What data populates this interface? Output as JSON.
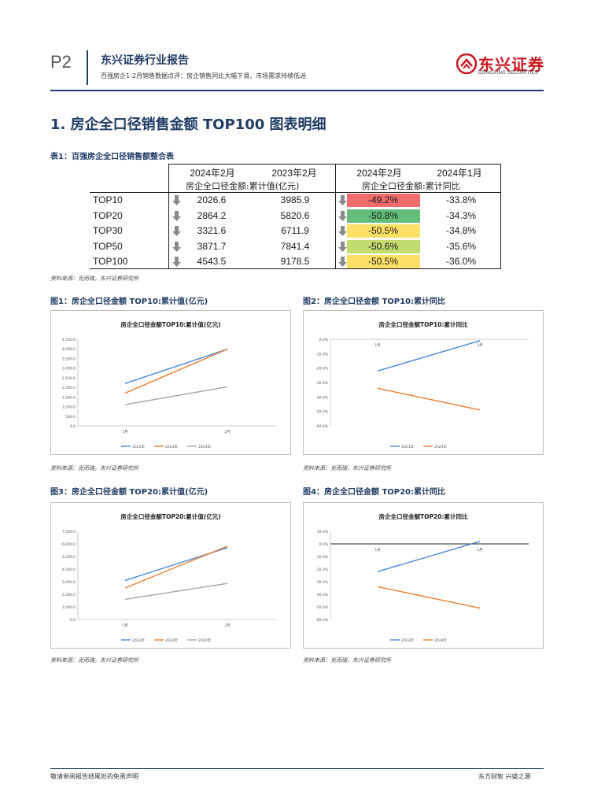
{
  "header": {
    "page_number": "P2",
    "report_type": "东兴证券行业报告",
    "subtitle": "百强房企1-2月销售数据点评：房企销售同比大幅下滑，市场需求持续低迷",
    "logo_cn": "东兴证券",
    "logo_en": "DONGXING SECURITIES"
  },
  "section_title": "1. 房企全口径销售金额 TOP100 图表明细",
  "table": {
    "title": "表1：百强房企全口径销售额整合表",
    "columns": [
      "2024年2月",
      "2023年2月",
      "2024年2月",
      "2024年1月"
    ],
    "group_left": "房企全口径金额:累计值(亿元)",
    "group_right": "房企全口径金额:累计同比",
    "rows": [
      {
        "name": "TOP10",
        "v2024": "2026.6",
        "v2023": "3985.9",
        "yoy_feb": "-49.2%",
        "yoy_jan": "-33.8%",
        "color": "#f26c6c"
      },
      {
        "name": "TOP20",
        "v2024": "2864.2",
        "v2023": "5820.6",
        "yoy_feb": "-50.8%",
        "yoy_jan": "-34.3%",
        "color": "#63be7b"
      },
      {
        "name": "TOP30",
        "v2024": "3321.6",
        "v2023": "6711.9",
        "yoy_feb": "-50.5%",
        "yoy_jan": "-34.8%",
        "color": "#ffe066"
      },
      {
        "name": "TOP50",
        "v2024": "3871.7",
        "v2023": "7841.4",
        "yoy_feb": "-50.6%",
        "yoy_jan": "-35.6%",
        "color": "#c2dc6e"
      },
      {
        "name": "TOP100",
        "v2024": "4543.5",
        "v2023": "9178.5",
        "yoy_feb": "-50.5%",
        "yoy_jan": "-36.0%",
        "color": "#ffe066"
      }
    ],
    "source": "资料来源：克而瑞，东兴证券研究所"
  },
  "figures": [
    {
      "caption": "图1：房企全口径金额 TOP10:累计值(亿元)",
      "source": "资料来源：克而瑞，东兴证券研究所"
    },
    {
      "caption": "图2：房企全口径金额 TOP10:累计同比",
      "source": "资料来源：克而瑞，东兴证券研究所"
    },
    {
      "caption": "图3：房企全口径金额 TOP20:累计值(亿元)",
      "source": "资料来源：克而瑞，东兴证券研究所"
    },
    {
      "caption": "图4：房企全口径金额 TOP20:累计同比",
      "source": "资料来源：克而瑞，东兴证券研究所"
    }
  ],
  "chart_data": [
    {
      "type": "line",
      "title": "房企全口径金额TOP10:累计值(亿元)",
      "categories": [
        "1月",
        "2月"
      ],
      "ylim": [
        0,
        4500
      ],
      "yticks": [
        "0.0",
        "500.0",
        "1,000.0",
        "1,500.0",
        "2,000.0",
        "2,500.0",
        "3,000.0",
        "3,500.0",
        "4,000.0",
        "4,500.0"
      ],
      "series": [
        {
          "name": "2022年",
          "color": "#4a86d9",
          "values": [
            2200,
            3985
          ]
        },
        {
          "name": "2023年",
          "color": "#ed7d31",
          "values": [
            1700,
            3985
          ]
        },
        {
          "name": "2024年",
          "color": "#a5a5a5",
          "values": [
            1100,
            2027
          ]
        }
      ],
      "legend": "bottom"
    },
    {
      "type": "line",
      "title": "房企全口径金额TOP10:累计同比",
      "categories": [
        "1月",
        "2月"
      ],
      "ylim": [
        -60,
        0
      ],
      "yticks": [
        "0.0%",
        "-10.0%",
        "-20.0%",
        "-30.0%",
        "-40.0%",
        "-50.0%",
        "-60.0%"
      ],
      "series": [
        {
          "name": "2023年",
          "color": "#4a86d9",
          "values": [
            -22,
            -1
          ]
        },
        {
          "name": "2024年",
          "color": "#ed7d31",
          "values": [
            -34,
            -49
          ]
        }
      ],
      "legend": "bottom"
    },
    {
      "type": "line",
      "title": "房企全口径金额TOP20:累计值(亿元)",
      "categories": [
        "1月",
        "2月"
      ],
      "ylim": [
        0,
        7000
      ],
      "yticks": [
        "0.0",
        "1,000.0",
        "2,000.0",
        "3,000.0",
        "4,000.0",
        "5,000.0",
        "6,000.0",
        "7,000.0"
      ],
      "series": [
        {
          "name": "2022年",
          "color": "#4a86d9",
          "values": [
            3100,
            5700
          ]
        },
        {
          "name": "2023年",
          "color": "#ed7d31",
          "values": [
            2500,
            5820
          ]
        },
        {
          "name": "2024年",
          "color": "#a5a5a5",
          "values": [
            1600,
            2864
          ]
        }
      ],
      "legend": "bottom"
    },
    {
      "type": "line",
      "title": "房企全口径金额TOP20:累计同比",
      "categories": [
        "1月",
        "2月"
      ],
      "ylim": [
        -60,
        10
      ],
      "yticks": [
        "10.0%",
        "0.0%",
        "-10.0%",
        "-20.0%",
        "-30.0%",
        "-40.0%",
        "-50.0%",
        "-60.0%"
      ],
      "series": [
        {
          "name": "2023年",
          "color": "#4a86d9",
          "values": [
            -22,
            2
          ]
        },
        {
          "name": "2024年",
          "color": "#ed7d31",
          "values": [
            -34,
            -51
          ]
        }
      ],
      "legend": "bottom"
    }
  ],
  "footer": {
    "left": "敬请参阅报告结尾处的免责声明",
    "right": "东方财智  兴盛之源"
  }
}
